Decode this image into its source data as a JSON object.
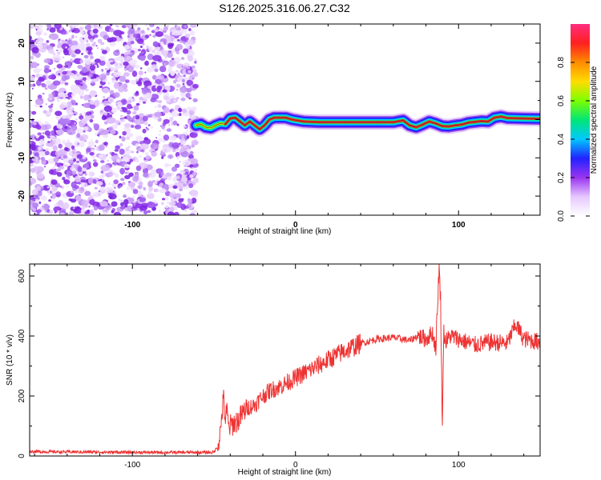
{
  "figure": {
    "title": "S126.2025.316.06.27.C32"
  },
  "chart_data": [
    {
      "type": "heatmap",
      "name": "spectrogram",
      "xlabel": "Height of straight line (km)",
      "ylabel": "Frequency (Hz)",
      "xlim": [
        -163,
        150
      ],
      "ylim": [
        -25,
        25
      ],
      "xticks": [
        -100,
        0,
        100
      ],
      "yticks": [
        -20,
        -10,
        0,
        10,
        20
      ],
      "noise_region_x": [
        -163,
        -61
      ],
      "ridge": {
        "x": [
          -61,
          -58,
          -55,
          -52,
          -49,
          -46,
          -43,
          -40,
          -37,
          -34,
          -31,
          -28,
          -25,
          -22,
          -19,
          -16,
          -13,
          -10,
          -6,
          -2,
          5,
          15,
          30,
          50,
          60,
          66,
          70,
          74,
          78,
          82,
          86,
          90,
          94,
          98,
          102,
          106,
          110,
          114,
          118,
          122,
          126,
          130,
          140,
          150
        ],
        "y": [
          -1.5,
          -1.2,
          -2.0,
          -2.2,
          -1.5,
          -1.0,
          -1.2,
          0.3,
          0.5,
          -0.5,
          -1.5,
          -0.5,
          -1.5,
          -2.5,
          -1.5,
          0,
          0.5,
          0.5,
          0.5,
          0,
          -0.5,
          -0.7,
          -0.7,
          -0.7,
          -0.7,
          -0.2,
          -1.5,
          -2.0,
          -1.3,
          -0.5,
          -1.0,
          -1.7,
          -1.8,
          -1.5,
          -1.3,
          -0.8,
          -0.6,
          -0.4,
          -0.5,
          0.5,
          0.8,
          0.4,
          0.3,
          0.2
        ]
      },
      "colorbar": {
        "label": "Normalized spectral amplitude",
        "range": [
          0,
          1
        ],
        "ticks": [
          0.0,
          0.2,
          0.4,
          0.6,
          0.8
        ],
        "tick_labels": [
          "0.0",
          "0.2",
          "0.4",
          "0.6",
          "0.8"
        ],
        "colors": [
          "#ffffff",
          "#e6c8ff",
          "#9a34f0",
          "#2222ff",
          "#00c8ff",
          "#00e676",
          "#7cff00",
          "#ffdd00",
          "#ff8c00",
          "#ff2020",
          "#ff2e80"
        ]
      }
    },
    {
      "type": "line",
      "name": "snr",
      "xlabel": "Height of straight line (km)",
      "ylabel": "SNR (10 * v/v)",
      "xlim": [
        -163,
        150
      ],
      "ylim": [
        0,
        640
      ],
      "xticks": [
        -100,
        0,
        100
      ],
      "yticks": [
        0,
        200,
        400,
        600
      ],
      "color": "#ee3333",
      "series": [
        {
          "name": "SNR",
          "x": [
            -163,
            -150,
            -120,
            -100,
            -80,
            -60,
            -50,
            -48,
            -46,
            -45,
            -44,
            -43,
            -42,
            -41,
            -40,
            -35,
            -30,
            -25,
            -20,
            -15,
            -10,
            -5,
            0,
            10,
            20,
            30,
            40,
            50,
            60,
            70,
            75,
            80,
            84,
            86,
            87,
            88,
            89,
            90,
            91,
            92,
            95,
            100,
            110,
            120,
            130,
            135,
            140,
            145,
            150
          ],
          "y": [
            15,
            14,
            13,
            12,
            12,
            12,
            12,
            30,
            80,
            150,
            190,
            120,
            150,
            95,
            100,
            120,
            160,
            170,
            200,
            220,
            230,
            245,
            260,
            290,
            320,
            350,
            375,
            390,
            395,
            385,
            400,
            390,
            410,
            360,
            480,
            630,
            520,
            110,
            420,
            380,
            400,
            390,
            370,
            380,
            375,
            440,
            390,
            385,
            380
          ]
        }
      ]
    }
  ]
}
